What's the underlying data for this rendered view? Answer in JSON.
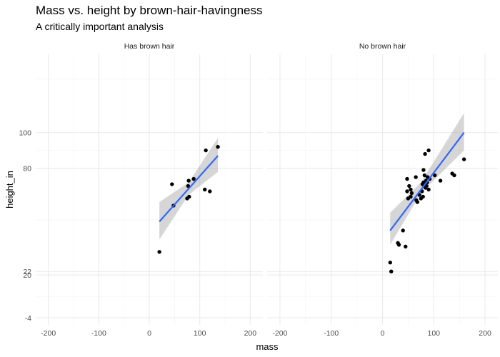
{
  "chart_data": {
    "type": "scatter",
    "title": "Mass vs. height by brown-hair-havingness",
    "subtitle": "A critically important analysis",
    "xlabel": "mass",
    "ylabel": "height_in",
    "xlim": [
      -225,
      225
    ],
    "ylim": [
      -8,
      144
    ],
    "x_ticks": [
      -200,
      -100,
      0,
      100,
      200
    ],
    "y_ticks": [
      -4,
      20,
      22,
      80,
      100
    ],
    "y_tick_labels": [
      "-4",
      "20",
      "22",
      "80",
      "100"
    ],
    "grid": true,
    "panels": [
      {
        "label": "Has brown hair",
        "points": [
          {
            "x": 20,
            "y": 33
          },
          {
            "x": 45,
            "y": 71
          },
          {
            "x": 48,
            "y": 59
          },
          {
            "x": 75,
            "y": 63
          },
          {
            "x": 77,
            "y": 70
          },
          {
            "x": 78,
            "y": 73
          },
          {
            "x": 79,
            "y": 64
          },
          {
            "x": 88,
            "y": 74
          },
          {
            "x": 110,
            "y": 68
          },
          {
            "x": 112,
            "y": 90
          },
          {
            "x": 120,
            "y": 67
          },
          {
            "x": 136,
            "y": 92
          }
        ],
        "fit": {
          "x0": 20,
          "y0": 50,
          "x1": 136,
          "y1": 87
        },
        "band": [
          {
            "x": 20,
            "lo": 40,
            "hi": 61
          },
          {
            "x": 78,
            "lo": 65,
            "hi": 72
          },
          {
            "x": 136,
            "lo": 78,
            "hi": 97
          }
        ]
      },
      {
        "label": "No brown hair",
        "points": [
          {
            "x": 15,
            "y": 27
          },
          {
            "x": 17,
            "y": 22
          },
          {
            "x": 30,
            "y": 38
          },
          {
            "x": 32,
            "y": 37
          },
          {
            "x": 40,
            "y": 45
          },
          {
            "x": 45,
            "y": 36
          },
          {
            "x": 48,
            "y": 74
          },
          {
            "x": 48,
            "y": 67
          },
          {
            "x": 50,
            "y": 63
          },
          {
            "x": 52,
            "y": 70
          },
          {
            "x": 55,
            "y": 64
          },
          {
            "x": 55,
            "y": 68
          },
          {
            "x": 57,
            "y": 66
          },
          {
            "x": 65,
            "y": 75
          },
          {
            "x": 66,
            "y": 62
          },
          {
            "x": 68,
            "y": 61
          },
          {
            "x": 72,
            "y": 65
          },
          {
            "x": 75,
            "y": 63
          },
          {
            "x": 77,
            "y": 67
          },
          {
            "x": 78,
            "y": 71
          },
          {
            "x": 79,
            "y": 64
          },
          {
            "x": 80,
            "y": 72
          },
          {
            "x": 80,
            "y": 79
          },
          {
            "x": 82,
            "y": 76
          },
          {
            "x": 83,
            "y": 88
          },
          {
            "x": 84,
            "y": 69
          },
          {
            "x": 85,
            "y": 73
          },
          {
            "x": 86,
            "y": 70
          },
          {
            "x": 87,
            "y": 72
          },
          {
            "x": 88,
            "y": 75
          },
          {
            "x": 90,
            "y": 90
          },
          {
            "x": 90,
            "y": 68
          },
          {
            "x": 92,
            "y": 74
          },
          {
            "x": 102,
            "y": 76
          },
          {
            "x": 113,
            "y": 73
          },
          {
            "x": 136,
            "y": 77
          },
          {
            "x": 140,
            "y": 76
          },
          {
            "x": 159,
            "y": 85
          }
        ],
        "fit": {
          "x0": 15,
          "y0": 45,
          "x1": 159,
          "y1": 100
        },
        "band": [
          {
            "x": 15,
            "lo": 37,
            "hi": 55
          },
          {
            "x": 75,
            "lo": 66,
            "hi": 72
          },
          {
            "x": 159,
            "lo": 90,
            "hi": 111
          }
        ]
      }
    ]
  }
}
